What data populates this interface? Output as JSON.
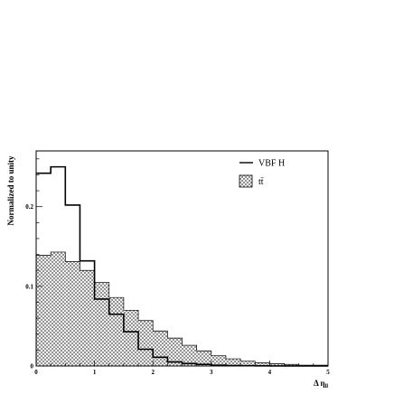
{
  "chart_data": {
    "type": "histogram",
    "title": "",
    "xlabel": "Δ η",
    "xlabel_sub": "ll",
    "ylabel": "Normalized to unity",
    "xlim": [
      0,
      5
    ],
    "ylim": [
      0,
      0.27
    ],
    "bin_edges": [
      0,
      0.25,
      0.5,
      0.75,
      1.0,
      1.25,
      1.5,
      1.75,
      2.0,
      2.25,
      2.5,
      2.75,
      3.0,
      3.25,
      3.5,
      3.75,
      4.0,
      4.25,
      4.5,
      4.75,
      5.0
    ],
    "x_ticks": [
      {
        "value": 0,
        "label": "0"
      },
      {
        "value": 1,
        "label": "1"
      },
      {
        "value": 2,
        "label": "2"
      },
      {
        "value": 3,
        "label": "3"
      },
      {
        "value": 4,
        "label": "4"
      },
      {
        "value": 5,
        "label": "5"
      }
    ],
    "y_ticks": [
      {
        "value": 0,
        "label": "0"
      },
      {
        "value": 0.1,
        "label": "0.1"
      },
      {
        "value": 0.2,
        "label": "0.2"
      }
    ],
    "legend_position": "top-right",
    "series": [
      {
        "name": "VBF H",
        "style": "line",
        "color": "#000000",
        "values": [
          0.242,
          0.25,
          0.202,
          0.132,
          0.084,
          0.065,
          0.043,
          0.021,
          0.011,
          0.005,
          0.003,
          0.002,
          0.001,
          0.0005,
          0.0003,
          0.0002,
          0.0001,
          0.0001,
          0.0,
          0.0
        ]
      },
      {
        "name": "tt̄",
        "style": "hatched",
        "color": "#000000",
        "values": [
          0.139,
          0.143,
          0.131,
          0.12,
          0.105,
          0.086,
          0.07,
          0.057,
          0.044,
          0.035,
          0.026,
          0.019,
          0.013,
          0.009,
          0.006,
          0.004,
          0.003,
          0.002,
          0.001,
          0.001
        ]
      }
    ]
  }
}
